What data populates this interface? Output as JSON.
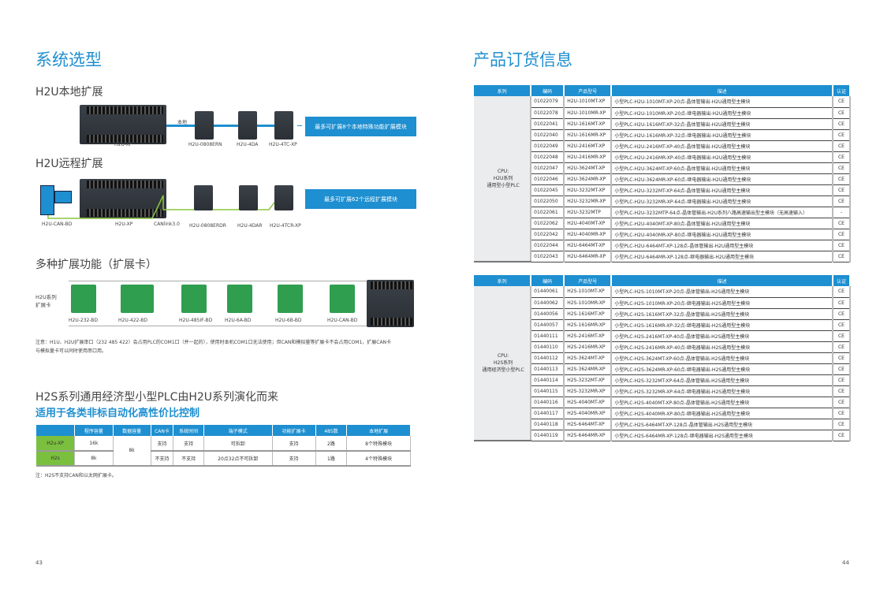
{
  "left": {
    "title": "系统选型",
    "local": {
      "heading": "H2U本地扩展",
      "link_label": "本地",
      "callout": "最多可扩展8个本地特殊功能扩展模块",
      "devices": [
        "H2U-XP",
        "H2U-0808ERN",
        "H2U-4DA",
        "H2U-4TC-XP"
      ]
    },
    "remote": {
      "heading": "H2U远程扩展",
      "link_label": "CANlink3.0",
      "callout": "最多可扩展62个远程扩展模块",
      "devices": [
        "H2U-CAN-BD",
        "H2U-XP",
        "H2U-0808ERDR",
        "H2U-4DAR",
        "H2U-4TCR-XP"
      ]
    },
    "cards": {
      "heading": "多种扩展功能（扩展卡）",
      "side_label": [
        "H2U系列",
        "扩展卡"
      ],
      "items": [
        "H2U-232-BD",
        "H2U-422-BD",
        "H2U-485IF-BD",
        "H2U-6A-BD",
        "H2U-6B-BD",
        "H2U-CAN-BD"
      ],
      "note": [
        "注意：H1U、H2U扩展串口（232 485 422）会占用PLC的COM1口（并一起的），使用时本机COM1口无法使用；但CAN和模拟量等扩展卡不会占用COM1，扩展CAN卡",
        "与模拟量卡可以同时使用串口用。"
      ]
    },
    "h2s": {
      "heading": "H2S系列通用经济型小型PLC由H2U系列演化而来",
      "subheading": "适用于各类非标自动化高性价比控制",
      "table": {
        "headers": [
          "",
          "程序容量",
          "数据容量",
          "CAN卡",
          "系统时间",
          "端子模式",
          "功能扩展卡",
          "485数",
          "本地扩展"
        ],
        "rows": [
          [
            "H2u-XP",
            "16k",
            "8k",
            "支持",
            "支持",
            "可拆卸",
            "支持",
            "2路",
            "8个特殊模块"
          ],
          [
            "H2s",
            "8k",
            "",
            "不支持",
            "不支持",
            "20点32点不可拆卸",
            "支持",
            "1路",
            "4个特殊模块"
          ]
        ]
      },
      "note": "注：H2S不支持CAN和以太网扩展卡。"
    },
    "page_number": "43"
  },
  "right": {
    "title": "产品订货信息",
    "headers": [
      "系列",
      "编码",
      "产品型号",
      "描述",
      "认证"
    ],
    "tables": [
      {
        "series": [
          "CPU:",
          "H2U系列",
          "通用型小型PLC"
        ],
        "rows": [
          [
            "01022079",
            "H2U-1010MT-XP",
            "小型PLC-H2U-1010MT-XP-20点-晶体管输出-H2U通用型主模块",
            "CE"
          ],
          [
            "01022078",
            "H2U-1010MR-XP",
            "小型PLC-H2U-1010MR-XP-20点-继电器输出-H2U通用型主模块",
            "CE"
          ],
          [
            "01022041",
            "H2U-1616MT-XP",
            "小型PLC-H2U-1616MT-XP-32点-晶体管输出-H2U通用型主模块",
            "CE"
          ],
          [
            "01022040",
            "H2U-1616MR-XP",
            "小型PLC-H2U-1616MR-XP-32点-继电器输出-H2U通用型主模块",
            "CE"
          ],
          [
            "01022049",
            "H2U-2416MT-XP",
            "小型PLC-H2U-2416MT-XP-40点-晶体管输出-H2U通用型主模块",
            "CE"
          ],
          [
            "01022048",
            "H2U-2416MR-XP",
            "小型PLC-H2U-2416MR-XP-40点-继电器输出-H2U通用型主模块",
            "CE"
          ],
          [
            "01022047",
            "H2U-3624MT-XP",
            "小型PLC-H2U-3624MT-XP-60点-晶体管输出-H2U通用型主模块",
            "CE"
          ],
          [
            "01022046",
            "H2U-3624MR-XP",
            "小型PLC-H2U-3624MR-XP-60点-继电器输出-H2U通用型主模块",
            "CE"
          ],
          [
            "01022045",
            "H2U-3232MT-XP",
            "小型PLC-H2U-3232MT-XP-64点-晶体管输出-H2U通用型主模块",
            "CE"
          ],
          [
            "01022050",
            "H2U-3232MR-XP",
            "小型PLC-H2U-3232MR-XP-64点-继电器输出-H2U通用型主模块",
            "CE"
          ],
          [
            "01022061",
            "H2U-3232MTP",
            "小型PLC-H2U-3232MTP-64点-晶体管输出-H2U系列八路高速输出型主模块（无高速输入）",
            "-"
          ],
          [
            "01022062",
            "H2U-4040MT-XP",
            "小型PLC-H2U-4040MT-XP-80点-晶体管输出-H2U通用型主模块",
            "CE"
          ],
          [
            "01022042",
            "H2U-4040MR-XP",
            "小型PLC-H2U-4040MR-XP-80点-继电器输出-H2U通用型主模块",
            "CE"
          ],
          [
            "01022044",
            "H2U-6464MT-XP",
            "小型PLC-H2U-6464MT-XP-128点-晶体管输出-H2U通用型主模块",
            "CE"
          ],
          [
            "01022043",
            "H2U-6464MR-XP",
            "小型PLC-H2U-6464MR-XP-128点-继电器输出-H2U通用型主模块",
            "CE"
          ]
        ]
      },
      {
        "series": [
          "CPU:",
          "H2S系列",
          "通用经济型小型PLC"
        ],
        "rows": [
          [
            "01440061",
            "H2S-1010MT-XP",
            "小型PLC-H2S-1010MT-XP-20点-晶体管输出-H2S通用型主模块",
            "CE"
          ],
          [
            "01440062",
            "H2S-1010MR-XP",
            "小型PLC-H2S-1010MR-XP-20点-继电器输出-H2S通用型主模块",
            "CE"
          ],
          [
            "01440056",
            "H2S-1616MT-XP",
            "小型PLC-H2S-1616MT-XP-32点-晶体管输出-H2S通用型主模块",
            "CE"
          ],
          [
            "01440057",
            "H2S-1616MR-XP",
            "小型PLC-H2S-1616MR-XP-32点-继电器输出-H2S通用型主模块",
            "CE"
          ],
          [
            "01440111",
            "H2S-2416MT-XP",
            "小型PLC-H2S-2416MT-XP-40点-晶体管输出-H2S通用型主模块",
            "CE"
          ],
          [
            "01440110",
            "H2S-2416MR-XP",
            "小型PLC-H2S-2416MR-XP-40点-继电器输出-H2S通用型主模块",
            "CE"
          ],
          [
            "01440112",
            "H2S-3624MT-XP",
            "小型PLC-H2S-3624MT-XP-60点-晶体管输出-H2S通用型主模块",
            "CE"
          ],
          [
            "01440113",
            "H2S-3624MR-XP",
            "小型PLC-H2S-3624MR-XP-60点-继电器输出-H2S通用型主模块",
            "CE"
          ],
          [
            "01440114",
            "H2S-3232MT-XP",
            "小型PLC-H2S-3232MT-XP-64点-晶体管输出-H2S通用型主模块",
            "CE"
          ],
          [
            "01440115",
            "H2S-3232MR-XP",
            "小型PLC-H2S-3232MR-XP-64点-继电器输出-H2S通用型主模块",
            "CE"
          ],
          [
            "01440116",
            "H2S-4040MT-XP",
            "小型PLC-H2S-4040MT-XP-80点-晶体管输出-H2S通用型主模块",
            "CE"
          ],
          [
            "01440117",
            "H2S-4040MR-XP",
            "小型PLC-H2S-4040MR-XP-80点-继电器输出-H2S通用型主模块",
            "CE"
          ],
          [
            "01440118",
            "H2S-6464MT-XP",
            "小型PLC-H2S-6464MT-XP-128点-晶体管输出-H2S通用型主模块",
            "CE"
          ],
          [
            "01440119",
            "H2S-6464MR-XP",
            "小型PLC-H2S-6464MR-XP-128点-继电器输出-H2S通用型主模块",
            "CE"
          ]
        ]
      }
    ],
    "page_number": "44"
  },
  "colors": {
    "accent": "#1e8fd0",
    "green": "#7bbf3f",
    "link_green": "#8cc63f"
  }
}
